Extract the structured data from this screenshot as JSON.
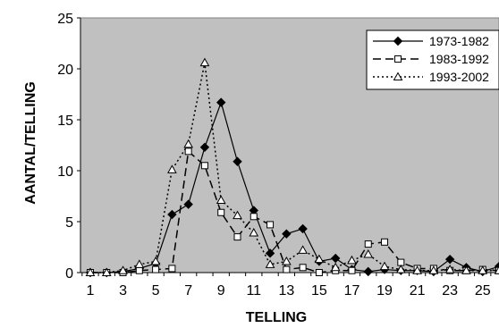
{
  "chart_data": {
    "type": "line",
    "xlabel": "TELLING",
    "ylabel": "AANTAL/TELLING",
    "ylim": [
      0,
      25
    ],
    "yticks": [
      0,
      5,
      10,
      15,
      20,
      25
    ],
    "xticks": [
      1,
      3,
      5,
      7,
      9,
      11,
      13,
      15,
      17,
      19,
      21,
      23,
      25
    ],
    "xlim": [
      0.4,
      26
    ],
    "grid": false,
    "legend_position": "top-right",
    "plot_background": "#c0c0c0",
    "series": [
      {
        "name": "1973-1982",
        "style": "solid",
        "marker": "filled-diamond",
        "x": [
          1,
          2,
          3,
          4,
          5,
          6,
          7,
          8,
          9,
          10,
          11,
          12,
          13,
          14,
          15,
          16,
          17,
          18,
          19,
          20,
          21,
          22,
          23,
          24,
          25,
          26
        ],
        "values": [
          0,
          0,
          0.1,
          0.4,
          0.9,
          5.7,
          6.7,
          12.3,
          16.7,
          10.9,
          6.1,
          1.9,
          3.8,
          4.3,
          1.1,
          1.4,
          0.3,
          0.1,
          0.3,
          0.2,
          0.2,
          0.1,
          1.3,
          0.5,
          0.1,
          0.6
        ]
      },
      {
        "name": "1983-1992",
        "style": "dashed",
        "marker": "open-square",
        "x": [
          1,
          2,
          3,
          4,
          5,
          6,
          7,
          8,
          9,
          10,
          11,
          12,
          13,
          14,
          15,
          16,
          17,
          18,
          19,
          20,
          21,
          22,
          23,
          24,
          25,
          26
        ],
        "values": [
          0,
          0,
          0,
          0.2,
          0.3,
          0.4,
          11.9,
          10.5,
          5.9,
          3.5,
          5.5,
          4.7,
          0.3,
          0.5,
          0,
          0.2,
          0.2,
          2.8,
          3,
          1,
          0.4,
          0.4,
          0.2,
          0.2,
          0.3,
          0.2
        ]
      },
      {
        "name": "1993-2002",
        "style": "dotted",
        "marker": "open-triangle",
        "x": [
          1,
          2,
          3,
          4,
          5,
          6,
          7,
          8,
          9,
          10,
          11,
          12,
          13,
          14,
          15,
          16,
          17,
          18,
          19,
          20,
          21,
          22,
          23,
          24,
          25,
          26
        ],
        "values": [
          0,
          0,
          0.2,
          0.8,
          1.1,
          10.1,
          12.6,
          20.6,
          7.1,
          5.6,
          3.9,
          0.8,
          1.1,
          2.2,
          1.3,
          0.5,
          1.2,
          1.8,
          0.6,
          0.3,
          0.2,
          0.2,
          0.3,
          0.2,
          0.2,
          0.2
        ]
      }
    ]
  }
}
